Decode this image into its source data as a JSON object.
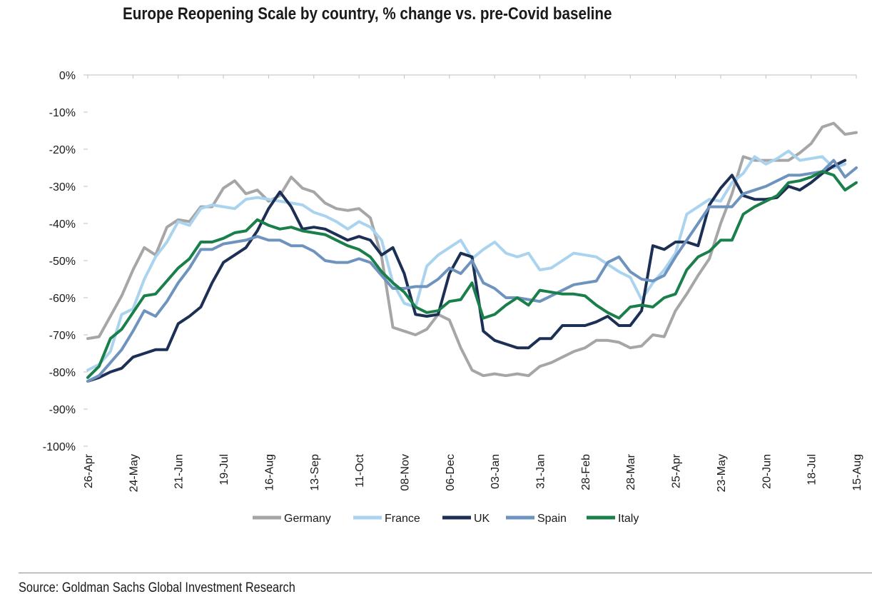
{
  "chart_data": {
    "type": "line",
    "title": "Europe Reopening Scale by country, % change vs. pre-Covid baseline",
    "source": "Source: Goldman Sachs Global Investment Research",
    "y_axis": {
      "min": -100,
      "max": 0,
      "step": 10,
      "tick_labels": [
        "0%",
        "-10%",
        "-20%",
        "-30%",
        "-40%",
        "-50%",
        "-60%",
        "-70%",
        "-80%",
        "-90%",
        "-100%"
      ]
    },
    "x_axis": {
      "tick_labels": [
        "26-Apr",
        "24-May",
        "21-Jun",
        "19-Jul",
        "16-Aug",
        "13-Sep",
        "11-Oct",
        "08-Nov",
        "06-Dec",
        "03-Jan",
        "31-Jan",
        "28-Feb",
        "28-Mar",
        "25-Apr",
        "23-May",
        "20-Jun",
        "18-Jul",
        "15-Aug"
      ],
      "weeks_between_labels": 4,
      "point_count": 69
    },
    "grid": false,
    "legend_position": "bottom",
    "series": [
      {
        "name": "Germany",
        "color": "#a6a6a6",
        "values": [
          -71,
          -70.5,
          -65,
          -59.5,
          -52.5,
          -46.5,
          -48.5,
          -41,
          -39,
          -39.5,
          -35.5,
          -35.5,
          -30.5,
          -28.5,
          -32,
          -31,
          -34,
          -32.5,
          -27.5,
          -30.5,
          -31.5,
          -34.5,
          -36,
          -36.5,
          -36,
          -38.5,
          -49,
          -68,
          -69,
          -70,
          -68.5,
          -64.5,
          -66,
          -73.5,
          -79.5,
          -81,
          -80.5,
          -81,
          -80.5,
          -81,
          -78.5,
          -77.5,
          -76,
          -74.5,
          -73.5,
          -71.5,
          -71.5,
          -72,
          -73.5,
          -73,
          -70,
          -70.5,
          -63.5,
          -59,
          -54,
          -49.5,
          -40,
          -32,
          -22,
          -23,
          -23,
          -23,
          -23,
          -21,
          -18.5,
          -14,
          -13,
          -16,
          -15.5
        ]
      },
      {
        "name": "France",
        "color": "#a9d3ee",
        "values": [
          -79.5,
          -78,
          -74.5,
          -64.5,
          -63,
          -55,
          -49,
          -45,
          -39.5,
          -40.5,
          -36,
          -35,
          -35.5,
          -36,
          -33.5,
          -33,
          -33.5,
          -34,
          -34.5,
          -35,
          -37,
          -38,
          -39.5,
          -41.5,
          -39.5,
          -41,
          -44.5,
          -56,
          -61.5,
          -62.5,
          -51.5,
          -48.5,
          -46.5,
          -44.5,
          -49.5,
          -47,
          -45,
          -48,
          -49,
          -48,
          -52.5,
          -52,
          -50,
          -48,
          -48.5,
          -49,
          -51,
          -53,
          -54.5,
          -60.5,
          -56,
          -52.5,
          -48,
          -37.5,
          -35.5,
          -33.5,
          -34,
          -29,
          -26.5,
          -22,
          -24,
          -22.5,
          -20.5,
          -23,
          -22.5,
          -22,
          -25,
          -24
        ]
      },
      {
        "name": "UK",
        "color": "#1c2f54",
        "values": [
          -82.5,
          -81.5,
          -80,
          -79,
          -76,
          -75,
          -74,
          -74,
          -67,
          -65,
          -62.5,
          -56,
          -50.5,
          -48.5,
          -46.5,
          -42,
          -36,
          -31.5,
          -35.5,
          -41.5,
          -41,
          -41.5,
          -43,
          -44.5,
          -43.5,
          -44.5,
          -48.5,
          -46.5,
          -53.5,
          -64.5,
          -65,
          -64.5,
          -53.5,
          -48,
          -49,
          -69,
          -71.5,
          -72.5,
          -73.5,
          -73.5,
          -71,
          -71,
          -67.5,
          -67.5,
          -67.5,
          -66.5,
          -65,
          -67.5,
          -67.5,
          -63.5,
          -46,
          -47,
          -45,
          -45,
          -46,
          -35,
          -30.5,
          -27,
          -32.5,
          -33.5,
          -33.5,
          -33,
          -30,
          -31,
          -29,
          -26.5,
          -24.5,
          -23
        ]
      },
      {
        "name": "Spain",
        "color": "#6e93bf",
        "values": [
          -82.5,
          -81,
          -77.5,
          -74,
          -69,
          -63.5,
          -65,
          -61,
          -56,
          -52,
          -47,
          -47,
          -45.5,
          -45,
          -44.5,
          -43.5,
          -44.5,
          -44.5,
          -46,
          -46,
          -47.5,
          -50,
          -50.5,
          -50.5,
          -49.5,
          -50.5,
          -54,
          -57.5,
          -57.5,
          -57,
          -57,
          -55,
          -52,
          -53.5,
          -50,
          -56,
          -57.5,
          -60,
          -60,
          -60.5,
          -61,
          -59.5,
          -58,
          -56.5,
          -56,
          -55.5,
          -50.5,
          -49,
          -53,
          -55,
          -55.5,
          -54,
          -49,
          -44.5,
          -40,
          -35.5,
          -35.5,
          -35.5,
          -32,
          -31,
          -30,
          -28.5,
          -27,
          -27,
          -26.5,
          -26,
          -23,
          -27.5,
          -25
        ]
      },
      {
        "name": "Italy",
        "color": "#1a7f4b",
        "values": [
          -81.5,
          -78.5,
          -71,
          -68.5,
          -64,
          -59.5,
          -59,
          -55.5,
          -52,
          -49.5,
          -45,
          -45,
          -44,
          -42.5,
          -42,
          -39,
          -40.5,
          -41.5,
          -41,
          -42,
          -42.5,
          -43,
          -44.5,
          -46,
          -47,
          -49,
          -53,
          -56,
          -58.5,
          -62.5,
          -64,
          -63.5,
          -61,
          -60.5,
          -56,
          -65.5,
          -64.5,
          -62,
          -60,
          -62,
          -58,
          -58.5,
          -59,
          -59,
          -59.5,
          -62,
          -64,
          -65.5,
          -62.5,
          -62,
          -62.5,
          -60,
          -59,
          -52.5,
          -49,
          -47.5,
          -44.5,
          -44.5,
          -37.5,
          -35.5,
          -34,
          -32.5,
          -29,
          -28.5,
          -27.5,
          -26,
          -27,
          -31,
          -29
        ]
      }
    ]
  }
}
